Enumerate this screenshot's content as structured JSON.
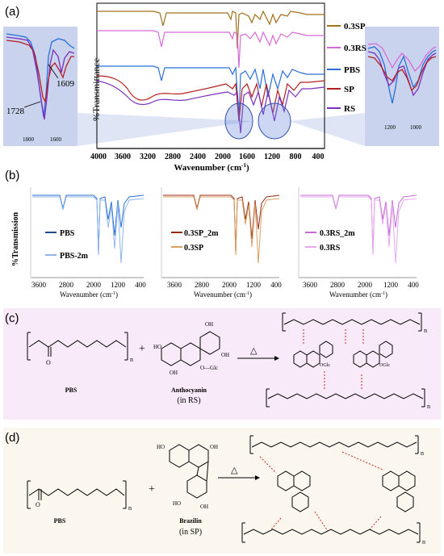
{
  "panels": {
    "a": {
      "letter": "(a)",
      "ylabel": "%Transmittance",
      "xlabel": "Wavenumber (cm",
      "xlabel_sup": "-1",
      "xlabel_end": ")",
      "xticks": [
        "4000",
        "3600",
        "3200",
        "2800",
        "2400",
        "2000",
        "1600",
        "1200",
        "800",
        "400"
      ],
      "legend": [
        "0.3SP",
        "0.3RS",
        "PBS",
        "SP",
        "RS"
      ],
      "inset_left": {
        "peak1": "1728",
        "peak2": "1609",
        "ticks": [
          "1800",
          "1600"
        ]
      },
      "inset_right": {
        "ticks": [
          "1200",
          "1000"
        ]
      }
    },
    "b": {
      "letter": "(b)",
      "ylabel": "%Transmission",
      "xlabel": "Wavenumber (cm",
      "xlabel_sup": "-1",
      "xlabel_end": ")",
      "xticks": [
        "3600",
        "2800",
        "2000",
        "1200",
        "400"
      ],
      "groups": [
        {
          "legend": [
            "PBS",
            "PBS-2m"
          ]
        },
        {
          "legend": [
            "0.3SP_2m",
            "0.3SP"
          ]
        },
        {
          "legend": [
            "0.3RS_2m",
            "0.3RS"
          ]
        }
      ]
    },
    "c": {
      "letter": "(c)",
      "pbs": "PBS",
      "anthocyanin": "Anthocyanin",
      "source": "(in RS)",
      "plus": "+",
      "glc": "O—Glc",
      "triangle": "△",
      "n": "n"
    },
    "d": {
      "letter": "(d)",
      "pbs": "PBS",
      "brazilin": "Brazilin",
      "source": "(in SP)",
      "plus": "+",
      "triangle": "△",
      "n": "n"
    }
  },
  "colors": {
    "sp03": "#a0701a",
    "rs03": "#d66ad8",
    "pbs": "#2a6fd6",
    "sp": "#b51f1f",
    "rs": "#7a2fbf",
    "inset_bg": "#c9d3ee",
    "panel_c_bg": "#f8eaf8",
    "panel_d_bg": "#fbf7ee",
    "pbs2m": "#8fb6e8",
    "sp03_2m": "#9a2a1a",
    "sp03b": "#d9a060",
    "rs03_2m": "#c76ad6",
    "rs03b": "#e6a8ee"
  }
}
